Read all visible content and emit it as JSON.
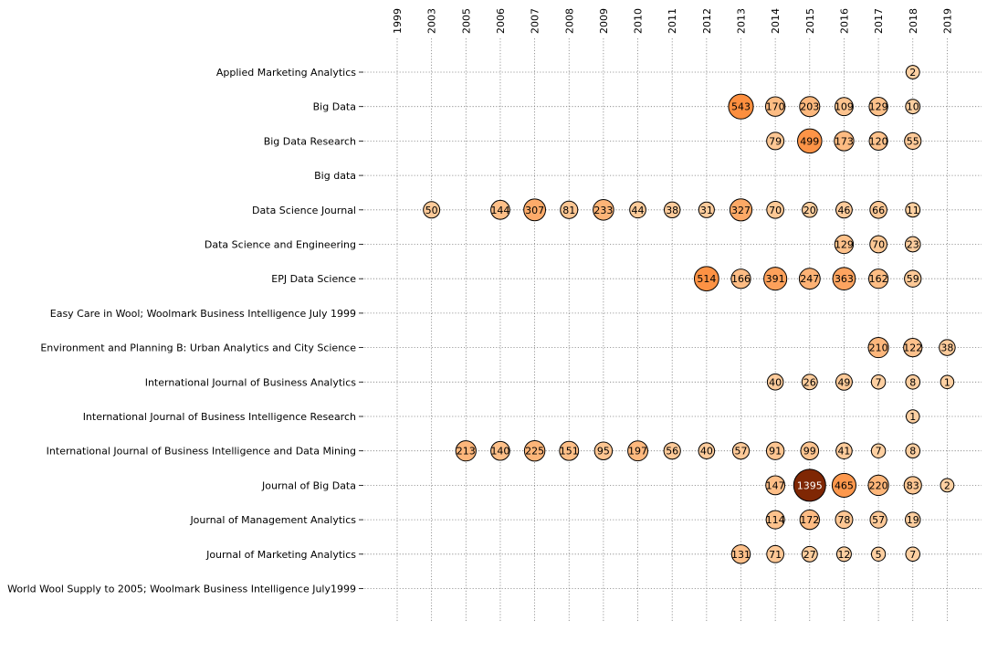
{
  "chart_data": {
    "type": "scatter",
    "title": "",
    "xlabel": "",
    "ylabel": "",
    "grid": true,
    "years": [
      "1999",
      "2003",
      "2005",
      "2006",
      "2007",
      "2008",
      "2009",
      "2010",
      "2011",
      "2012",
      "2013",
      "2014",
      "2015",
      "2016",
      "2017",
      "2018",
      "2019"
    ],
    "journals": [
      "Applied Marketing Analytics",
      "Big Data",
      "Big Data Research",
      "Big data",
      "Data Science Journal",
      "Data Science and Engineering",
      "EPJ Data Science",
      "Easy Care in Wool; Woolmark Business Intelligence July 1999",
      "Environment and Planning B: Urban Analytics and City Science",
      "International Journal of Business Analytics",
      "International Journal of Business Intelligence Research",
      "International Journal of Business Intelligence and Data Mining",
      "Journal of Big Data",
      "Journal of Management Analytics",
      "Journal of Marketing Analytics",
      "World Wool Supply to 2005; Woolmark Business Intelligence July1999"
    ],
    "points": [
      {
        "journal": "Applied Marketing Analytics",
        "year": "2018",
        "value": 2
      },
      {
        "journal": "Big Data",
        "year": "2013",
        "value": 543
      },
      {
        "journal": "Big Data",
        "year": "2014",
        "value": 170
      },
      {
        "journal": "Big Data",
        "year": "2015",
        "value": 203
      },
      {
        "journal": "Big Data",
        "year": "2016",
        "value": 109
      },
      {
        "journal": "Big Data",
        "year": "2017",
        "value": 129
      },
      {
        "journal": "Big Data",
        "year": "2018",
        "value": 10
      },
      {
        "journal": "Big Data Research",
        "year": "2014",
        "value": 79
      },
      {
        "journal": "Big Data Research",
        "year": "2015",
        "value": 499
      },
      {
        "journal": "Big Data Research",
        "year": "2016",
        "value": 173
      },
      {
        "journal": "Big Data Research",
        "year": "2017",
        "value": 120
      },
      {
        "journal": "Big Data Research",
        "year": "2018",
        "value": 55
      },
      {
        "journal": "Data Science Journal",
        "year": "2003",
        "value": 50
      },
      {
        "journal": "Data Science Journal",
        "year": "2006",
        "value": 144
      },
      {
        "journal": "Data Science Journal",
        "year": "2007",
        "value": 307
      },
      {
        "journal": "Data Science Journal",
        "year": "2008",
        "value": 81
      },
      {
        "journal": "Data Science Journal",
        "year": "2009",
        "value": 233
      },
      {
        "journal": "Data Science Journal",
        "year": "2010",
        "value": 44
      },
      {
        "journal": "Data Science Journal",
        "year": "2011",
        "value": 38
      },
      {
        "journal": "Data Science Journal",
        "year": "2012",
        "value": 31
      },
      {
        "journal": "Data Science Journal",
        "year": "2013",
        "value": 327
      },
      {
        "journal": "Data Science Journal",
        "year": "2014",
        "value": 70
      },
      {
        "journal": "Data Science Journal",
        "year": "2015",
        "value": 20
      },
      {
        "journal": "Data Science Journal",
        "year": "2016",
        "value": 46
      },
      {
        "journal": "Data Science Journal",
        "year": "2017",
        "value": 66
      },
      {
        "journal": "Data Science Journal",
        "year": "2018",
        "value": 11
      },
      {
        "journal": "Data Science and Engineering",
        "year": "2016",
        "value": 129
      },
      {
        "journal": "Data Science and Engineering",
        "year": "2017",
        "value": 70
      },
      {
        "journal": "Data Science and Engineering",
        "year": "2018",
        "value": 23
      },
      {
        "journal": "EPJ Data Science",
        "year": "2012",
        "value": 514
      },
      {
        "journal": "EPJ Data Science",
        "year": "2013",
        "value": 166
      },
      {
        "journal": "EPJ Data Science",
        "year": "2014",
        "value": 391
      },
      {
        "journal": "EPJ Data Science",
        "year": "2015",
        "value": 247
      },
      {
        "journal": "EPJ Data Science",
        "year": "2016",
        "value": 363
      },
      {
        "journal": "EPJ Data Science",
        "year": "2017",
        "value": 162
      },
      {
        "journal": "EPJ Data Science",
        "year": "2018",
        "value": 59
      },
      {
        "journal": "Environment and Planning B: Urban Analytics and City Science",
        "year": "2017",
        "value": 210
      },
      {
        "journal": "Environment and Planning B: Urban Analytics and City Science",
        "year": "2018",
        "value": 122
      },
      {
        "journal": "Environment and Planning B: Urban Analytics and City Science",
        "year": "2019",
        "value": 38
      },
      {
        "journal": "International Journal of Business Analytics",
        "year": "2014",
        "value": 40
      },
      {
        "journal": "International Journal of Business Analytics",
        "year": "2015",
        "value": 26
      },
      {
        "journal": "International Journal of Business Analytics",
        "year": "2016",
        "value": 49
      },
      {
        "journal": "International Journal of Business Analytics",
        "year": "2017",
        "value": 7
      },
      {
        "journal": "International Journal of Business Analytics",
        "year": "2018",
        "value": 8
      },
      {
        "journal": "International Journal of Business Analytics",
        "year": "2019",
        "value": 1
      },
      {
        "journal": "International Journal of Business Intelligence Research",
        "year": "2018",
        "value": 1
      },
      {
        "journal": "International Journal of Business Intelligence and Data Mining",
        "year": "2005",
        "value": 213
      },
      {
        "journal": "International Journal of Business Intelligence and Data Mining",
        "year": "2006",
        "value": 140
      },
      {
        "journal": "International Journal of Business Intelligence and Data Mining",
        "year": "2007",
        "value": 225
      },
      {
        "journal": "International Journal of Business Intelligence and Data Mining",
        "year": "2008",
        "value": 151
      },
      {
        "journal": "International Journal of Business Intelligence and Data Mining",
        "year": "2009",
        "value": 95
      },
      {
        "journal": "International Journal of Business Intelligence and Data Mining",
        "year": "2010",
        "value": 197
      },
      {
        "journal": "International Journal of Business Intelligence and Data Mining",
        "year": "2011",
        "value": 56
      },
      {
        "journal": "International Journal of Business Intelligence and Data Mining",
        "year": "2012",
        "value": 40
      },
      {
        "journal": "International Journal of Business Intelligence and Data Mining",
        "year": "2013",
        "value": 57
      },
      {
        "journal": "International Journal of Business Intelligence and Data Mining",
        "year": "2014",
        "value": 91
      },
      {
        "journal": "International Journal of Business Intelligence and Data Mining",
        "year": "2015",
        "value": 99
      },
      {
        "journal": "International Journal of Business Intelligence and Data Mining",
        "year": "2016",
        "value": 41
      },
      {
        "journal": "International Journal of Business Intelligence and Data Mining",
        "year": "2017",
        "value": 7
      },
      {
        "journal": "International Journal of Business Intelligence and Data Mining",
        "year": "2018",
        "value": 8
      },
      {
        "journal": "Journal of Big Data",
        "year": "2014",
        "value": 147
      },
      {
        "journal": "Journal of Big Data",
        "year": "2015",
        "value": 1395
      },
      {
        "journal": "Journal of Big Data",
        "year": "2016",
        "value": 465
      },
      {
        "journal": "Journal of Big Data",
        "year": "2017",
        "value": 220
      },
      {
        "journal": "Journal of Big Data",
        "year": "2018",
        "value": 83
      },
      {
        "journal": "Journal of Big Data",
        "year": "2019",
        "value": 2
      },
      {
        "journal": "Journal of Management Analytics",
        "year": "2014",
        "value": 114
      },
      {
        "journal": "Journal of Management Analytics",
        "year": "2015",
        "value": 172
      },
      {
        "journal": "Journal of Management Analytics",
        "year": "2016",
        "value": 78
      },
      {
        "journal": "Journal of Management Analytics",
        "year": "2017",
        "value": 57
      },
      {
        "journal": "Journal of Management Analytics",
        "year": "2018",
        "value": 19
      },
      {
        "journal": "Journal of Marketing Analytics",
        "year": "2013",
        "value": 131
      },
      {
        "journal": "Journal of Marketing Analytics",
        "year": "2014",
        "value": 71
      },
      {
        "journal": "Journal of Marketing Analytics",
        "year": "2015",
        "value": 27
      },
      {
        "journal": "Journal of Marketing Analytics",
        "year": "2016",
        "value": 12
      },
      {
        "journal": "Journal of Marketing Analytics",
        "year": "2017",
        "value": 5
      },
      {
        "journal": "Journal of Marketing Analytics",
        "year": "2018",
        "value": 7
      }
    ],
    "colors": {
      "low": "#fdd0a2",
      "mid": "#fd8d3c",
      "high": "#7f2704",
      "grid": "#7f7f7f",
      "edge": "#000000"
    }
  }
}
